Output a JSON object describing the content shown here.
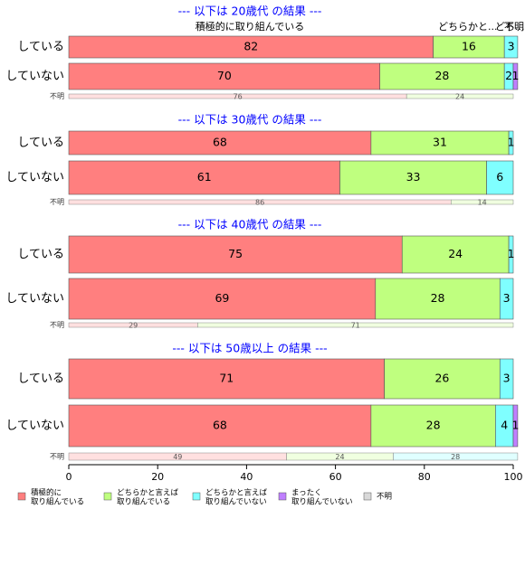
{
  "colors": {
    "active": "#ff7f7f",
    "somewhat_active": "#bfff7f",
    "somewhat_inactive": "#7fffff",
    "not_at_all": "#bf7fff",
    "unknown": "#d9d9d9",
    "title": "#0000ff",
    "text": "#000000"
  },
  "chart_data": {
    "type": "bar",
    "orientation": "horizontal",
    "stacked": true,
    "percent": true,
    "xlim": [
      0,
      100
    ],
    "xticks": [
      "0",
      "20",
      "40",
      "60",
      "80",
      "100"
    ],
    "grid": false,
    "legend_position": "bottom",
    "top_annotations": [
      "積極的に取り組んでいる",
      "どちらかと...",
      "どち...",
      "不明..."
    ],
    "series": [
      {
        "key": "active",
        "legend": "積極的に\n取り組んでいる"
      },
      {
        "key": "somewhat_active",
        "legend": "どちらかと言えば\n取り組んでいる"
      },
      {
        "key": "somewhat_inactive",
        "legend": "どちらかと言えば\n取り組んでいない"
      },
      {
        "key": "not_at_all",
        "legend": "まったく\n取り組んでいない"
      },
      {
        "key": "unknown",
        "legend": "不明"
      }
    ],
    "panels": [
      {
        "title": "--- 以下は 20歳代 の結果 ---",
        "bars": [
          {
            "label": "している",
            "values": [
              82,
              16,
              3,
              0
            ],
            "labels": [
              "82",
              "16",
              "3",
              ""
            ]
          },
          {
            "label": "していない",
            "values": [
              70,
              28,
              2,
              1
            ],
            "labels": [
              "70",
              "28",
              "2",
              "1"
            ]
          }
        ],
        "unknown": {
          "label": "不明",
          "values": [
            76,
            24,
            0
          ],
          "labels": [
            "76",
            "24",
            ""
          ]
        }
      },
      {
        "title": "--- 以下は 30歳代 の結果 ---",
        "bars": [
          {
            "label": "している",
            "values": [
              68,
              31,
              1,
              0
            ],
            "labels": [
              "68",
              "31",
              "1",
              ""
            ]
          },
          {
            "label": "していない",
            "values": [
              61,
              33,
              6,
              0
            ],
            "labels": [
              "61",
              "33",
              "6",
              ""
            ]
          }
        ],
        "unknown": {
          "label": "不明",
          "values": [
            86,
            14,
            0
          ],
          "labels": [
            "86",
            "14",
            ""
          ]
        }
      },
      {
        "title": "--- 以下は 40歳代 の結果 ---",
        "bars": [
          {
            "label": "している",
            "values": [
              75,
              24,
              1,
              0
            ],
            "labels": [
              "75",
              "24",
              "1",
              ""
            ]
          },
          {
            "label": "していない",
            "values": [
              69,
              28,
              3,
              0
            ],
            "labels": [
              "69",
              "28",
              "3",
              ""
            ]
          }
        ],
        "unknown": {
          "label": "不明",
          "values": [
            29,
            71,
            0
          ],
          "labels": [
            "29",
            "71",
            ""
          ]
        }
      },
      {
        "title": "--- 以下は 50歳以上 の結果 ---",
        "bars": [
          {
            "label": "している",
            "values": [
              71,
              26,
              3,
              0
            ],
            "labels": [
              "71",
              "26",
              "3",
              ""
            ]
          },
          {
            "label": "していない",
            "values": [
              68,
              28,
              4,
              1
            ],
            "labels": [
              "68",
              "28",
              "4",
              "1"
            ]
          }
        ],
        "unknown": {
          "label": "不明",
          "values": [
            49,
            24,
            28
          ],
          "labels": [
            "49",
            "24",
            "28"
          ]
        }
      }
    ]
  }
}
